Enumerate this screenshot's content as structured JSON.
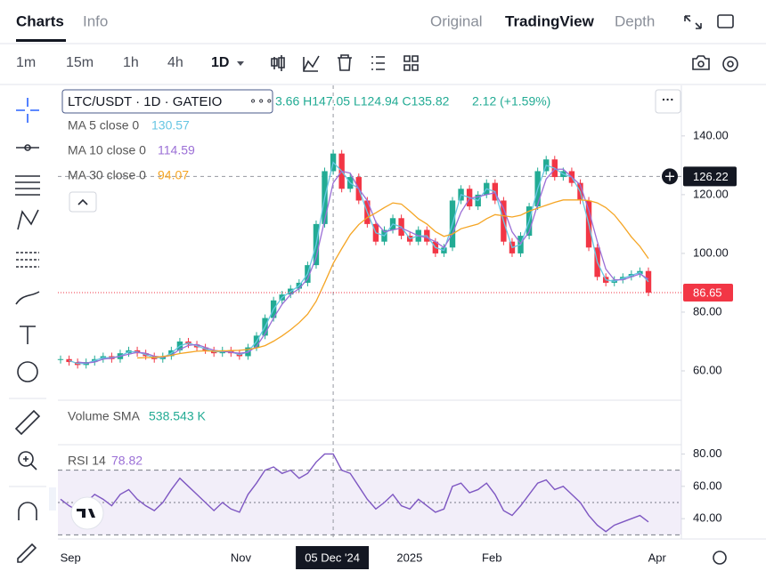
{
  "tabs": [
    "Charts",
    "Info"
  ],
  "views": [
    "Original",
    "TradingView",
    "Depth"
  ],
  "intervals": [
    "1m",
    "15m",
    "1h",
    "4h",
    "1D"
  ],
  "legend": {
    "symbol": "LTC/USDT · 1D · GATEIO",
    "ohlc": "3.66 H147.05 L124.94 C135.82",
    "change": "2.12 (+1.59%)"
  },
  "indicators": [
    {
      "name": "MA 5 close 0",
      "value": "130.57",
      "color": "#67c6e3"
    },
    {
      "name": "MA 10 close 0",
      "value": "114.59",
      "color": "#9b6fd6"
    },
    {
      "name": "MA 30 close 0",
      "value": "94.07",
      "color": "#f5a524"
    }
  ],
  "volume": {
    "name": "Volume SMA",
    "value": "538.543 K"
  },
  "rsi": {
    "name": "RSI 14",
    "value": "78.82"
  },
  "chart_data": {
    "type": "candlestick",
    "up_color": "#22ab94",
    "down_color": "#f23645",
    "closes": [
      64,
      63,
      62,
      63,
      64,
      65,
      64,
      66,
      67,
      66,
      65,
      64,
      65,
      67,
      70,
      69,
      68,
      67,
      66,
      67,
      66,
      65,
      68,
      72,
      78,
      84,
      86,
      88,
      90,
      96,
      110,
      128,
      134,
      122,
      126,
      118,
      110,
      104,
      108,
      112,
      106,
      104,
      108,
      104,
      100,
      102,
      118,
      122,
      116,
      120,
      124,
      118,
      104,
      100,
      106,
      116,
      128,
      132,
      126,
      128,
      124,
      118,
      102,
      92,
      90,
      91,
      92,
      93,
      94,
      86.65
    ],
    "ylim": [
      50,
      156
    ],
    "yticks": [
      {
        "value": 140,
        "label": "140.00"
      },
      {
        "value": 120,
        "label": "120.00"
      },
      {
        "value": 100,
        "label": "100.00"
      },
      {
        "value": 80,
        "label": "80.00"
      },
      {
        "value": 60,
        "label": "60.00"
      }
    ],
    "crosshair_price": 126.22,
    "xlim": [
      0,
      69
    ],
    "xticks": [
      {
        "value": 1,
        "label": "Sep"
      },
      {
        "value": 21,
        "label": "Nov"
      },
      {
        "value": 32,
        "label": "05 Dec '24"
      },
      {
        "value": 40.5,
        "label": "2025"
      },
      {
        "value": 50.5,
        "label": "Feb"
      },
      {
        "value": 70,
        "label": "Apr"
      }
    ],
    "rsi_values": [
      52,
      48,
      45,
      50,
      55,
      52,
      48,
      55,
      58,
      52,
      48,
      45,
      50,
      58,
      65,
      60,
      55,
      50,
      45,
      50,
      46,
      44,
      55,
      62,
      70,
      72,
      68,
      70,
      65,
      68,
      75,
      80,
      80,
      70,
      68,
      60,
      52,
      46,
      50,
      55,
      48,
      46,
      52,
      48,
      44,
      46,
      60,
      62,
      56,
      58,
      62,
      55,
      45,
      42,
      48,
      55,
      62,
      64,
      58,
      60,
      55,
      50,
      42,
      36,
      32,
      36,
      38,
      40,
      42,
      38
    ],
    "rsi_ylim": [
      28,
      83
    ],
    "rsi_yticks": [
      {
        "value": 80,
        "label": "80.00"
      },
      {
        "value": 60,
        "label": "60.00"
      },
      {
        "value": 40,
        "label": "40.00"
      }
    ],
    "rsi_levels": [
      70,
      50,
      30
    ]
  }
}
